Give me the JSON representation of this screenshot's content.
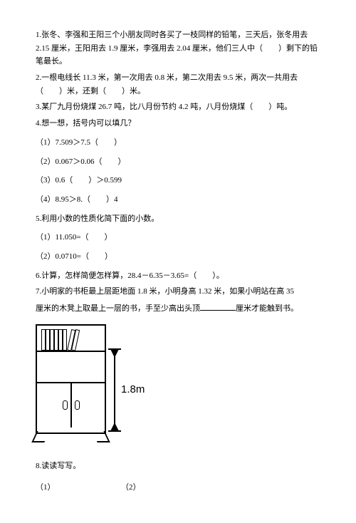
{
  "q1": "1.张冬、李强和王阳三个小朋友同时各买了一枝同样的铅笔，三天后，张冬用去 2.15 厘米，王阳用去 1.9 厘米，李强用去 2.04 厘米，他们三人中（　　）剩下的铅笔最长。",
  "q2": "2.一根电线长 11.3 米，第一次用去 0.8 米，第二次用去 9.5 米，两次一共用去（　　）米，还剩（　　）米。",
  "q3": "3.某厂九月份烧煤 26.7 吨，比八月份节约 4.2 吨，八月份烧煤（　　）吨。",
  "q4": {
    "stem": "4.想一想，括号内可以填几？",
    "s1": "（1）7.509＞7.5（　　）",
    "s2": "（2）0.067＞0.06（　　）",
    "s3": "（3）0.6（　　）＞0.599",
    "s4": "（4）8.95＞8.（　　）4"
  },
  "q5": {
    "stem": "5.利用小数的性质化简下面的小数。",
    "s1": "（1）11.050=（　　）",
    "s2": "（2）0.0710=（　　）"
  },
  "q6": "6.计算，怎样简便怎样算，28.4－6.35－3.65=（　　）。",
  "q7": {
    "line1": "7.小明家的书柜最上层距地面 1.8 米，小明身高 1.32 米，如果小明站在高 35",
    "line2_a": "厘米的木凳上取最上一层的书，手至少高出头顶",
    "line2_b": "厘米才能触到书。"
  },
  "dim_label": "1.8m",
  "q8": {
    "stem": "8.读读写写。",
    "s1": "（1）",
    "s2": "（2）"
  }
}
